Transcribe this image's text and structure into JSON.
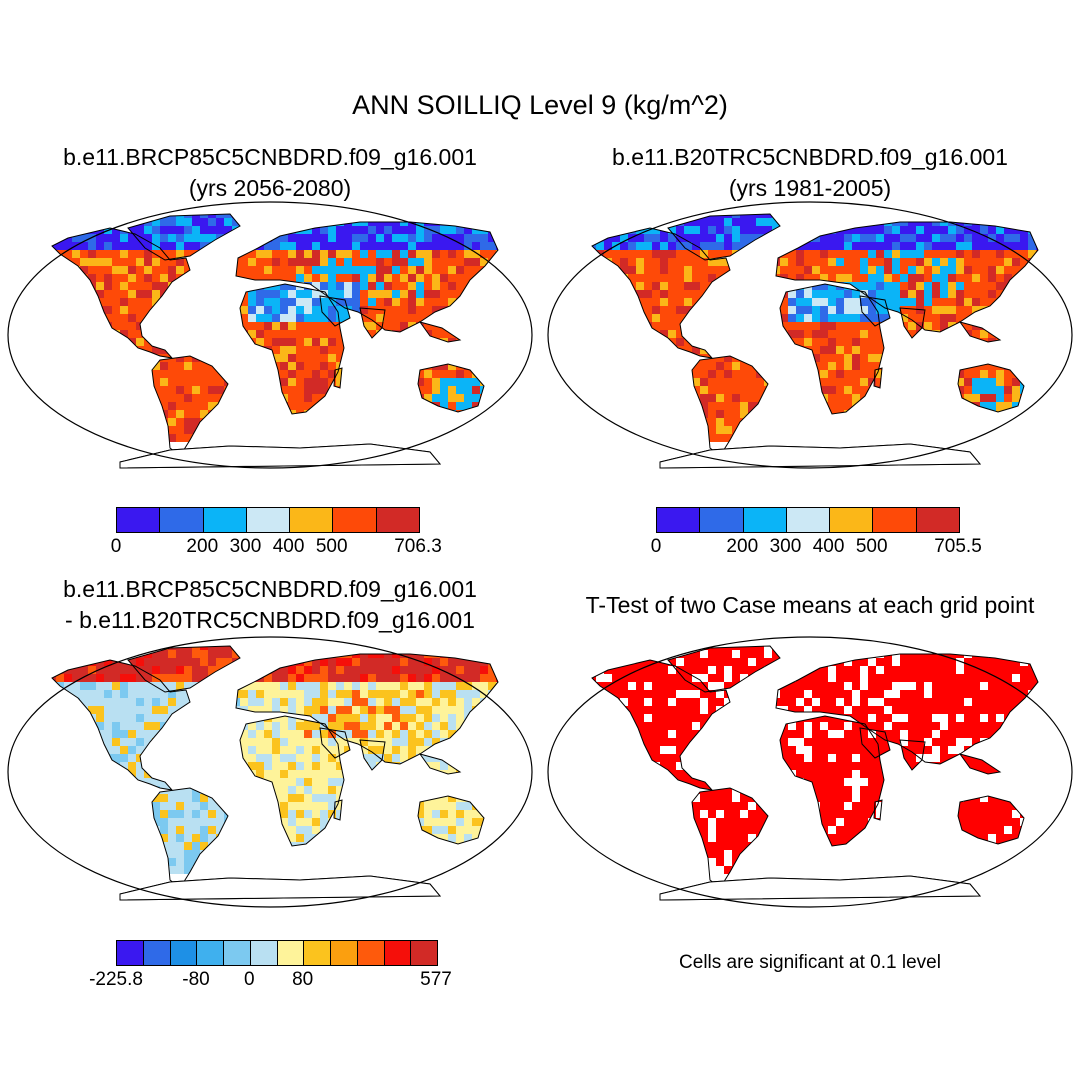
{
  "title": "ANN SOILLIQ Level 9 (kg/m^2)",
  "panels": [
    {
      "id": "future",
      "title_line1": "b.e11.BRCP85C5CNBDRD.f09_g16.001",
      "title_line2": "(yrs 2056-2080)",
      "colorbar": {
        "colors": [
          "#3a18f0",
          "#2f6ae8",
          "#0bb4f7",
          "#cce8f5",
          "#fbb718",
          "#fe4a08",
          "#d22a26"
        ],
        "tick_labels": [
          "0",
          "200",
          "300",
          "400",
          "500",
          "706.3"
        ]
      }
    },
    {
      "id": "historical",
      "title_line1": "b.e11.B20TRC5CNBDRD.f09_g16.001",
      "title_line2": "(yrs 1981-2005)",
      "colorbar": {
        "colors": [
          "#3a18f0",
          "#2f6ae8",
          "#0bb4f7",
          "#cce8f5",
          "#fbb718",
          "#fe4a08",
          "#d22a26"
        ],
        "tick_labels": [
          "0",
          "200",
          "300",
          "400",
          "500",
          "705.5"
        ]
      }
    },
    {
      "id": "difference",
      "title_line1": "b.e11.BRCP85C5CNBDRD.f09_g16.001",
      "title_line2": "- b.e11.B20TRC5CNBDRD.f09_g16.001",
      "colorbar": {
        "colors": [
          "#3a18f0",
          "#2f6ae8",
          "#1e90e6",
          "#3fb0ee",
          "#7cc9f0",
          "#b9e0f2",
          "#fef39a",
          "#fbc31e",
          "#fb9f0f",
          "#fe5a0c",
          "#f50f0a",
          "#d22a26"
        ],
        "tick_labels": [
          "-225.8",
          "-80",
          "0",
          "80",
          "577"
        ]
      }
    },
    {
      "id": "ttest",
      "title_line1": "T-Test of two Case means at each grid point",
      "title_line2": "",
      "note": "Cells are significant at 0.1 level"
    }
  ],
  "colors": {
    "outline": "#000000",
    "significant": "#ff0000"
  }
}
